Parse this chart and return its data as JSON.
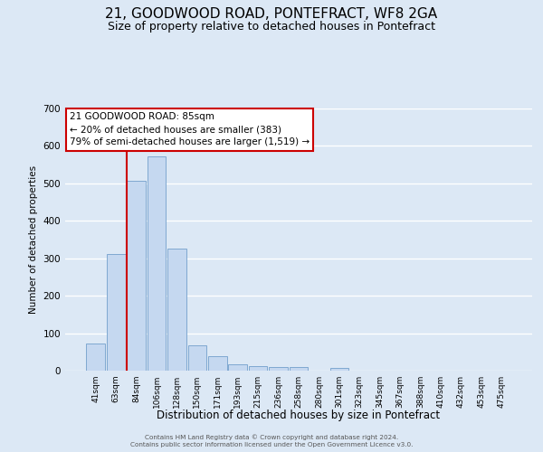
{
  "title": "21, GOODWOOD ROAD, PONTEFRACT, WF8 2GA",
  "subtitle": "Size of property relative to detached houses in Pontefract",
  "bar_labels": [
    "41sqm",
    "63sqm",
    "84sqm",
    "106sqm",
    "128sqm",
    "150sqm",
    "171sqm",
    "193sqm",
    "215sqm",
    "236sqm",
    "258sqm",
    "280sqm",
    "301sqm",
    "323sqm",
    "345sqm",
    "367sqm",
    "388sqm",
    "410sqm",
    "432sqm",
    "453sqm",
    "475sqm"
  ],
  "bar_values": [
    72,
    312,
    507,
    572,
    326,
    67,
    38,
    18,
    13,
    10,
    10,
    0,
    7,
    0,
    0,
    0,
    0,
    0,
    0,
    0,
    0
  ],
  "bar_color": "#c5d8f0",
  "bar_edge_color": "#7fa8d0",
  "vline_color": "#cc0000",
  "vline_index": 2,
  "ylabel": "Number of detached properties",
  "xlabel": "Distribution of detached houses by size in Pontefract",
  "ylim": [
    0,
    700
  ],
  "yticks": [
    0,
    100,
    200,
    300,
    400,
    500,
    600,
    700
  ],
  "annotation_title": "21 GOODWOOD ROAD: 85sqm",
  "annotation_line1": "← 20% of detached houses are smaller (383)",
  "annotation_line2": "79% of semi-detached houses are larger (1,519) →",
  "annotation_box_color": "#ffffff",
  "annotation_box_edge": "#cc0000",
  "footer1": "Contains HM Land Registry data © Crown copyright and database right 2024.",
  "footer2": "Contains public sector information licensed under the Open Government Licence v3.0.",
  "background_color": "#dce8f5",
  "plot_bg_color": "#dce8f5",
  "grid_color": "#ffffff",
  "title_fontsize": 11,
  "subtitle_fontsize": 9,
  "bar_width": 0.92
}
